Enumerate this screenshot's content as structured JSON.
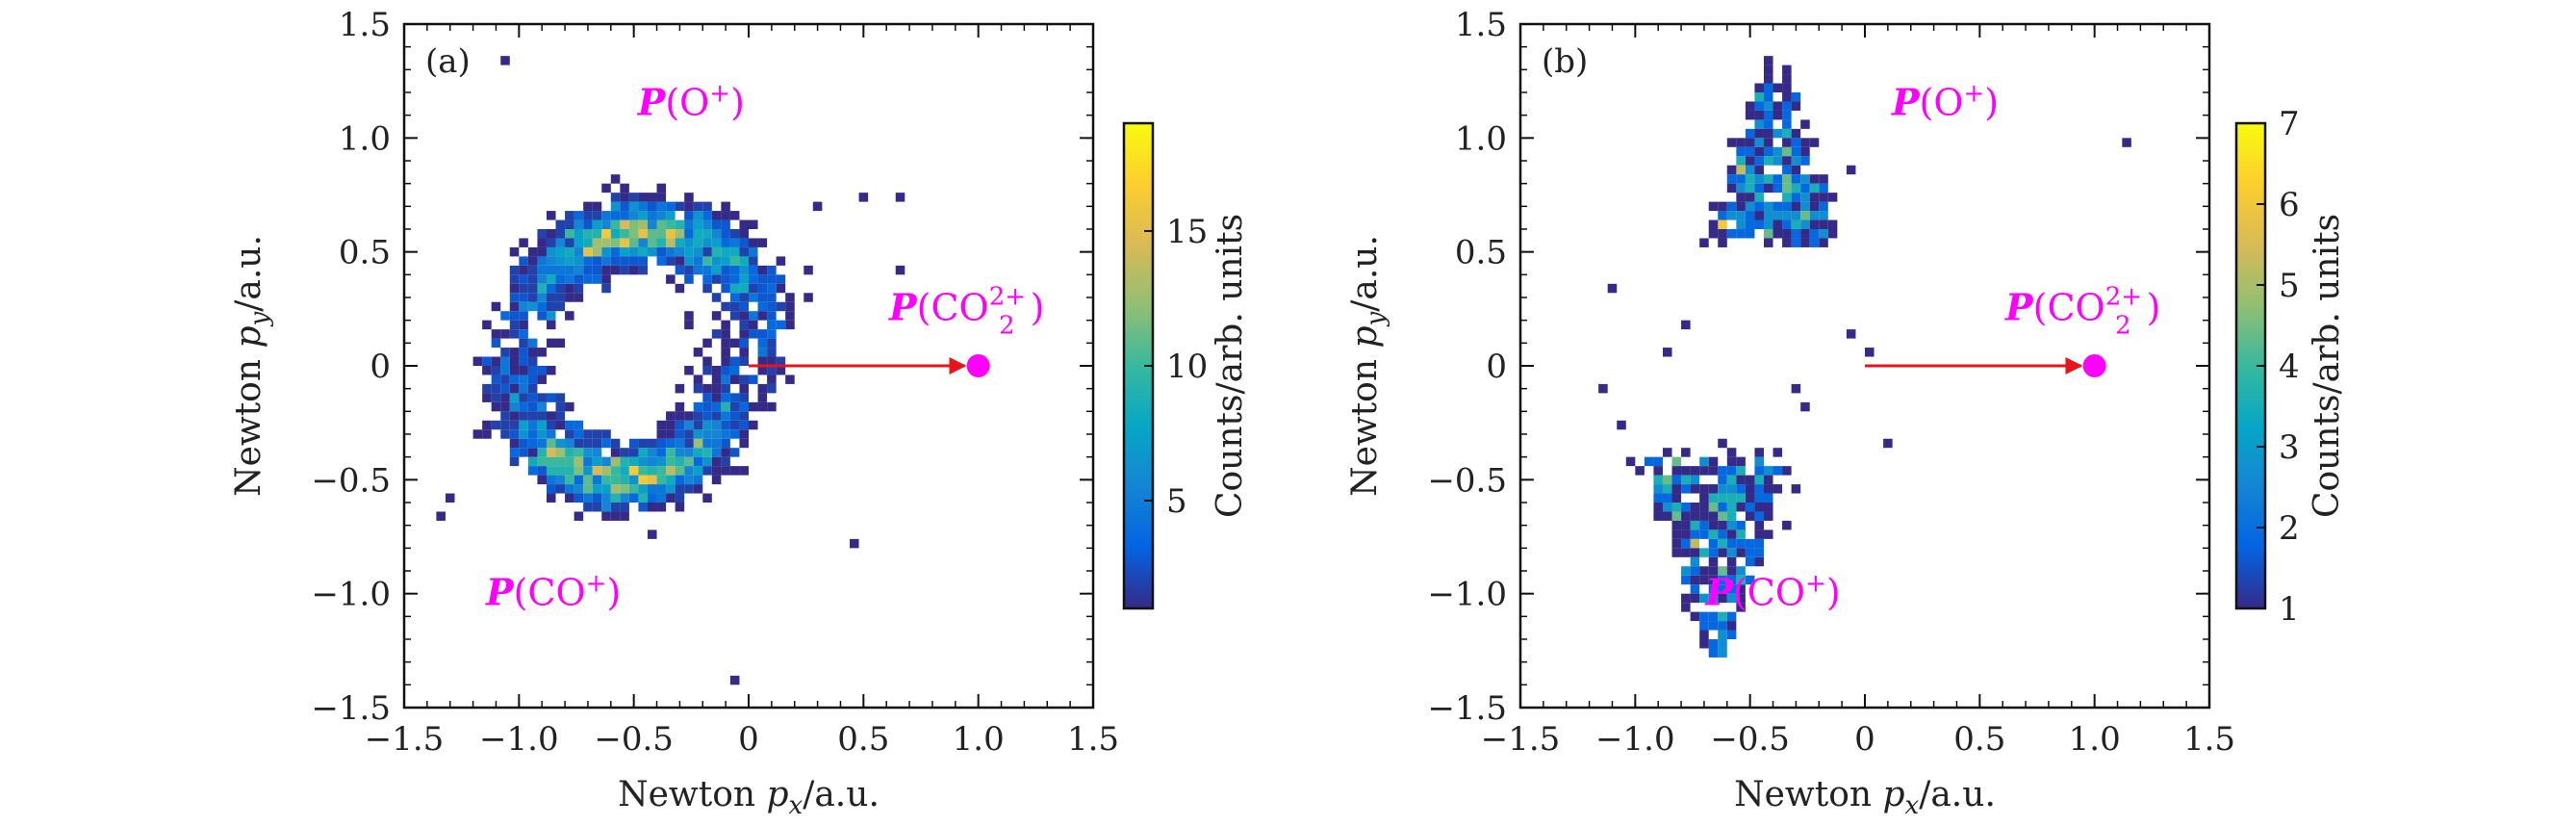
{
  "figure": {
    "colors": {
      "annotation": "#ff00ff",
      "arrow": "#e8141c",
      "colormap": [
        "#352a87",
        "#0363e1",
        "#1485d4",
        "#06a7c6",
        "#38b99e",
        "#92bf73",
        "#d9ba56",
        "#fcce2e",
        "#f9fb0e"
      ]
    }
  },
  "chart_data": [
    {
      "type": "heatmap",
      "panel_label": "(a)",
      "xlabel_pre": "Newton ",
      "xlabel_var": "p",
      "xlabel_sub": "x",
      "xlabel_post": "/a.u.",
      "ylabel_pre": "Newton ",
      "ylabel_var": "p",
      "ylabel_sub": "y",
      "ylabel_post": "/a.u.",
      "xlim": [
        -1.5,
        1.5
      ],
      "ylim": [
        -1.5,
        1.5
      ],
      "xticks": [
        -1.5,
        -1.0,
        -0.5,
        0,
        0.5,
        1.0,
        1.5
      ],
      "xtick_labels": [
        "−1.5",
        "−1.0",
        "−0.5",
        "0",
        "0.5",
        "1.0",
        "1.5"
      ],
      "yticks": [
        -1.5,
        -1.0,
        -0.5,
        0,
        0.5,
        1.0,
        1.5
      ],
      "ytick_labels": [
        "−1.5",
        "−1.0",
        "−0.5",
        "0",
        "0.5",
        "1.0",
        "1.5"
      ],
      "colorbar": {
        "label": "Counts/arb. units",
        "range": [
          1,
          19
        ],
        "ticks": [
          5,
          10,
          15
        ],
        "tick_labels": [
          "5",
          "10",
          "15"
        ]
      },
      "distribution": {
        "o_plus": {
          "arc_center": [
            -0.45,
            0.05
          ],
          "radius": 0.55,
          "angle_range_deg": [
            30,
            150
          ],
          "approx_counts": 1400
        },
        "co_plus": {
          "arc_center": [
            -0.55,
            -0.02
          ],
          "radius": 0.48,
          "angle_range_deg": [
            -160,
            -20
          ],
          "approx_counts": 1400
        },
        "outliers": [
          [
            -1.06,
            1.33
          ],
          [
            0.3,
            0.68
          ],
          [
            0.48,
            0.72
          ],
          [
            0.65,
            0.72
          ],
          [
            0.65,
            0.42
          ],
          [
            -1.32,
            -0.57
          ],
          [
            -1.35,
            -0.67
          ],
          [
            0.45,
            -0.77
          ],
          [
            -0.08,
            -1.39
          ],
          [
            0.15,
            0.02
          ],
          [
            -1.17,
            0.0
          ],
          [
            0.1,
            0.1
          ]
        ]
      },
      "arrow": {
        "from": [
          0,
          0
        ],
        "to": [
          1.0,
          0
        ]
      },
      "dot": [
        1.0,
        0
      ],
      "annotations": [
        {
          "bold": "P",
          "text": "(O",
          "sup": "+",
          "tail": ")",
          "pos": [
            -0.25,
            1.1
          ]
        },
        {
          "bold": "P",
          "text": "(CO",
          "sup": "+",
          "tail": ")",
          "pos": [
            -0.85,
            -1.05
          ]
        },
        {
          "bold": "P",
          "text": "(CO",
          "sub": "2",
          "sup": "2+",
          "tail": ")",
          "pos": [
            0.95,
            0.2
          ]
        }
      ]
    },
    {
      "type": "heatmap",
      "panel_label": "(b)",
      "xlabel_pre": "Newton ",
      "xlabel_var": "p",
      "xlabel_sub": "x",
      "xlabel_post": "/a.u.",
      "ylabel_pre": "Newton ",
      "ylabel_var": "p",
      "ylabel_sub": "y",
      "ylabel_post": "/a.u.",
      "xlim": [
        -1.5,
        1.5
      ],
      "ylim": [
        -1.5,
        1.5
      ],
      "xticks": [
        -1.5,
        -1.0,
        -0.5,
        0,
        0.5,
        1.0,
        1.5
      ],
      "xtick_labels": [
        "−1.5",
        "−1.0",
        "−0.5",
        "0",
        "0.5",
        "1.0",
        "1.5"
      ],
      "yticks": [
        -1.5,
        -1.0,
        -0.5,
        0,
        0.5,
        1.0,
        1.5
      ],
      "ytick_labels": [
        "−1.5",
        "−1.0",
        "−0.5",
        "0",
        "0.5",
        "1.0",
        "1.5"
      ],
      "colorbar": {
        "label": "Counts/arb. units",
        "range": [
          1,
          7
        ],
        "ticks": [
          1,
          2,
          3,
          4,
          5,
          6,
          7
        ],
        "tick_labels": [
          "1",
          "2",
          "3",
          "4",
          "5",
          "6",
          "7"
        ]
      },
      "distribution": {
        "o_plus": {
          "apex": [
            -0.4,
            1.38
          ],
          "base_y": 0.55,
          "base_half_width": 0.3,
          "approx_counts": 320
        },
        "co_plus": {
          "apex": [
            -0.65,
            -1.35
          ],
          "base_y": -0.4,
          "base_half_width": 0.35,
          "approx_counts": 360
        },
        "outliers": [
          [
            -1.1,
            0.32
          ],
          [
            -1.12,
            -0.12
          ],
          [
            -1.05,
            -0.25
          ],
          [
            -0.85,
            0.05
          ],
          [
            -0.8,
            0.18
          ],
          [
            0.08,
            -0.35
          ],
          [
            -0.05,
            0.12
          ],
          [
            0.02,
            0.05
          ],
          [
            1.15,
            0.97
          ],
          [
            -0.05,
            0.85
          ],
          [
            -0.25,
            -0.18
          ],
          [
            -0.3,
            -0.1
          ]
        ]
      },
      "arrow": {
        "from": [
          0,
          0
        ],
        "to": [
          1.0,
          0
        ]
      },
      "dot": [
        1.0,
        0
      ],
      "annotations": [
        {
          "bold": "P",
          "text": "(O",
          "sup": "+",
          "tail": ")",
          "pos": [
            0.35,
            1.1
          ]
        },
        {
          "bold": "P",
          "text": "(CO",
          "sup": "+",
          "tail": ")",
          "pos": [
            -0.4,
            -1.05
          ]
        },
        {
          "bold": "P",
          "text": "(CO",
          "sub": "2",
          "sup": "2+",
          "tail": ")",
          "pos": [
            0.95,
            0.2
          ]
        }
      ]
    }
  ]
}
